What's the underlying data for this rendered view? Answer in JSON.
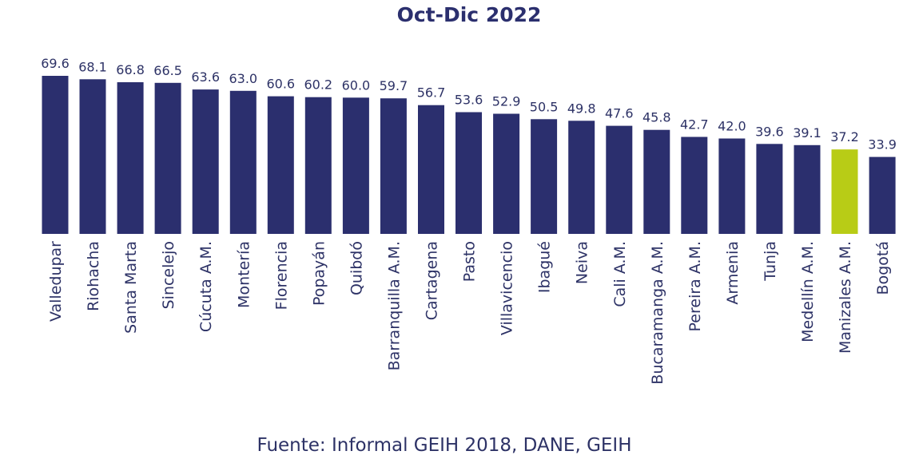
{
  "chart_data": {
    "type": "bar",
    "title": "Oct-Dic 2022",
    "source": "Fuente: Informal GEIH 2018, DANE, GEIH",
    "categories": [
      "Valledupar",
      "Riohacha",
      "Santa Marta",
      "Sincelejo",
      "Cúcuta A.M.",
      "Montería",
      "Florencia",
      "Popayán",
      "Quibdó",
      "Barranquilla A.M.",
      "Cartagena",
      "Pasto",
      "Villavicencio",
      "Ibagué",
      "Neiva",
      "Cali A.M.",
      "Bucaramanga A.M.",
      "Pereira A.M.",
      "Armenia",
      "Tunja",
      "Medellín A.M.",
      "Manizales A.M.",
      "Bogotá"
    ],
    "values": [
      69.6,
      68.1,
      66.8,
      66.5,
      63.6,
      63.0,
      60.6,
      60.2,
      60.0,
      59.7,
      56.7,
      53.6,
      52.9,
      50.5,
      49.8,
      47.6,
      45.8,
      42.7,
      42.0,
      39.6,
      39.1,
      37.2,
      33.9
    ],
    "value_labels": [
      "69.6",
      "68.1",
      "66.8",
      "66.5",
      "63.6",
      "63.0",
      "60.6",
      "60.2",
      "60.0",
      "59.7",
      "56.7",
      "53.6",
      "52.9",
      "50.5",
      "49.8",
      "47.6",
      "45.8",
      "42.7",
      "42.0",
      "39.6",
      "39.1",
      "37.2",
      "33.9"
    ],
    "colors": {
      "bar": "#2b2f6e",
      "highlight": "#b8cc16",
      "text": "#2d3266"
    },
    "highlight_category": "Manizales A.M.",
    "ylim": [
      0,
      69.6
    ],
    "grid": false,
    "legend": "none"
  }
}
